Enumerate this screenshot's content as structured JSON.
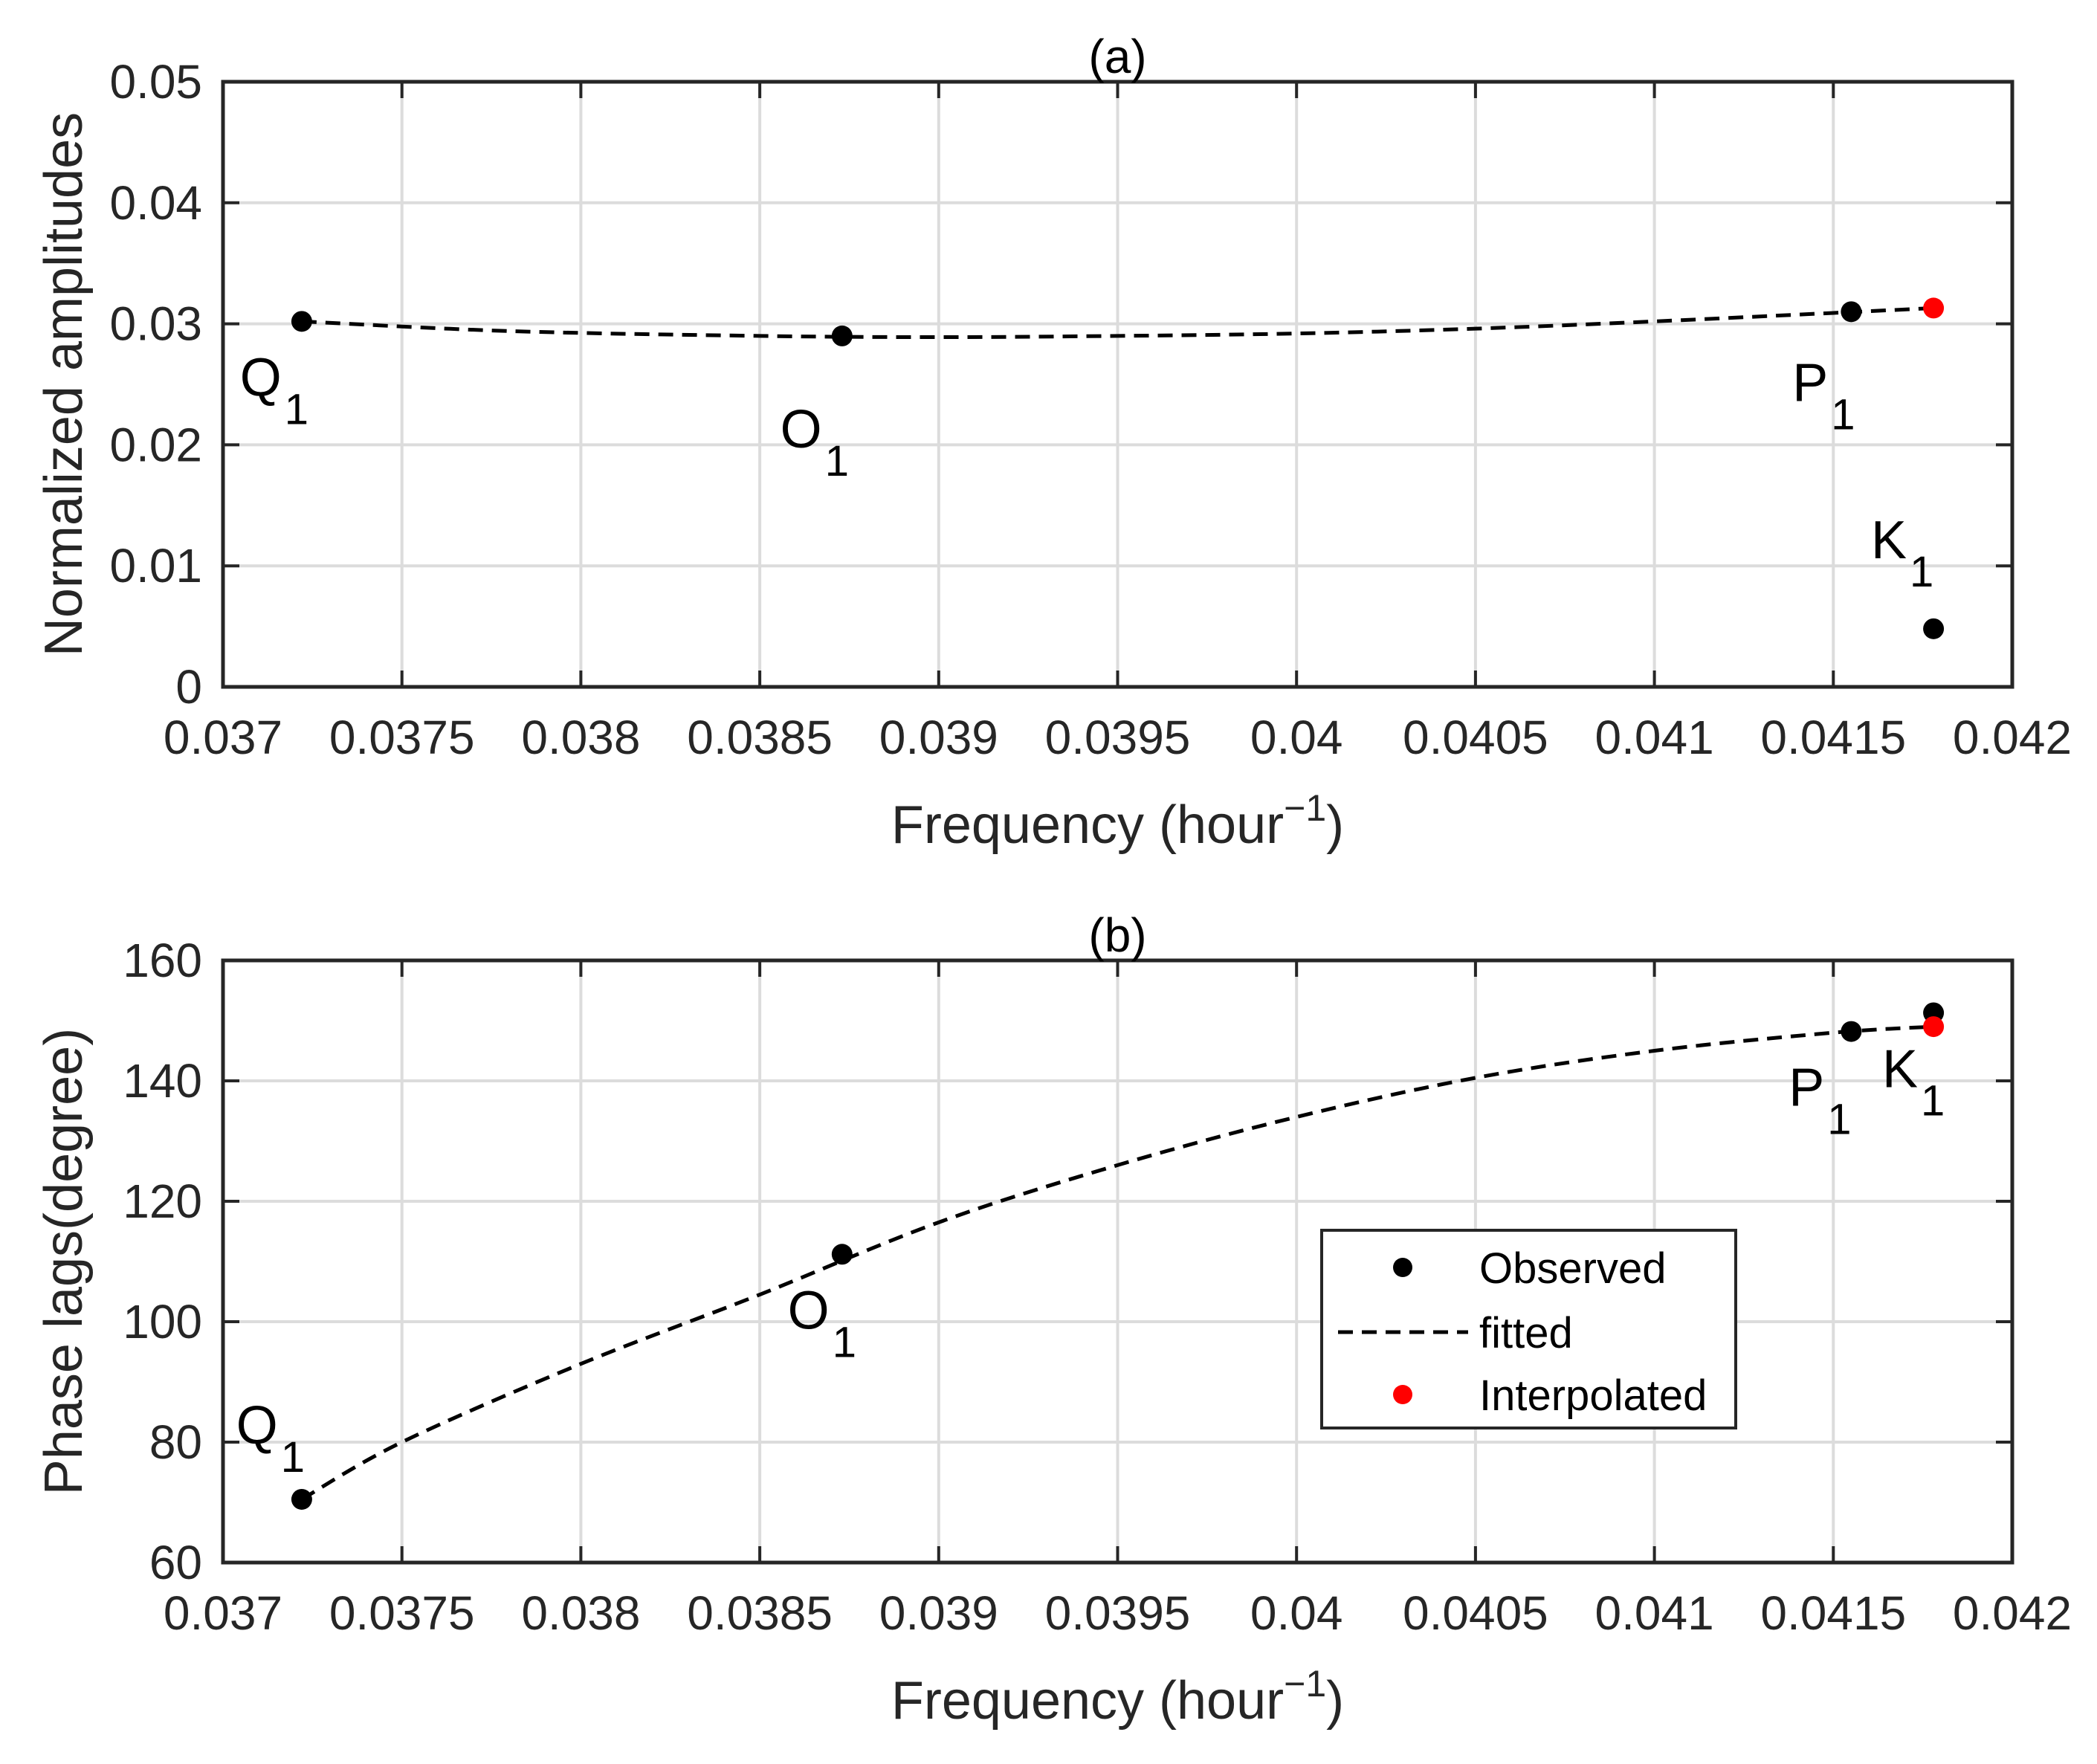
{
  "chart_data": [
    {
      "type": "scatter",
      "panel_title": "(a)",
      "xlabel": "Frequency (hour",
      "xlabel_sup": "−1",
      "xlabel_end": ")",
      "ylabel": "Normalized amplitudes",
      "xlim": [
        0.037,
        0.042
      ],
      "ylim": [
        0,
        0.05
      ],
      "xticks": [
        0.037,
        0.0375,
        0.038,
        0.0385,
        0.039,
        0.0395,
        0.04,
        0.0405,
        0.041,
        0.0415,
        0.042
      ],
      "xtick_labels": [
        "0.037",
        "0.0375",
        "0.038",
        "0.0385",
        "0.039",
        "0.0395",
        "0.04",
        "0.0405",
        "0.041",
        "0.0415",
        "0.042"
      ],
      "yticks": [
        0,
        0.01,
        0.02,
        0.03,
        0.04,
        0.05
      ],
      "ytick_labels": [
        "0",
        "0.01",
        "0.02",
        "0.03",
        "0.04",
        "0.05"
      ],
      "grid": true,
      "observed": [
        {
          "name": "Q",
          "sub": "1",
          "x": 0.03722,
          "y": 0.0302
        },
        {
          "name": "O",
          "sub": "1",
          "x": 0.03873,
          "y": 0.029
        },
        {
          "name": "P",
          "sub": "1",
          "x": 0.04155,
          "y": 0.031
        },
        {
          "name": "K",
          "sub": "1",
          "x": 0.04178,
          "y": 0.0048
        }
      ],
      "interpolated": [
        {
          "x": 0.04178,
          "y": 0.0313
        }
      ],
      "fitted": {
        "x": [
          0.03722,
          0.0378,
          0.0385,
          0.039,
          0.0395,
          0.04,
          0.0405,
          0.041,
          0.0415,
          0.04178
        ],
        "y": [
          0.0302,
          0.0294,
          0.029,
          0.0289,
          0.029,
          0.0292,
          0.0296,
          0.0302,
          0.0309,
          0.0313
        ]
      }
    },
    {
      "type": "scatter",
      "panel_title": "(b)",
      "xlabel": "Frequency (hour",
      "xlabel_sup": "−1",
      "xlabel_end": ")",
      "ylabel": "Phase lags(degree)",
      "xlim": [
        0.037,
        0.042
      ],
      "ylim": [
        60,
        160
      ],
      "xticks": [
        0.037,
        0.0375,
        0.038,
        0.0385,
        0.039,
        0.0395,
        0.04,
        0.0405,
        0.041,
        0.0415,
        0.042
      ],
      "xtick_labels": [
        "0.037",
        "0.0375",
        "0.038",
        "0.0385",
        "0.039",
        "0.0395",
        "0.04",
        "0.0405",
        "0.041",
        "0.0415",
        "0.042"
      ],
      "yticks": [
        60,
        80,
        100,
        120,
        140,
        160
      ],
      "ytick_labels": [
        "60",
        "80",
        "100",
        "120",
        "140",
        "160"
      ],
      "grid": true,
      "observed": [
        {
          "name": "Q",
          "sub": "1",
          "x": 0.03722,
          "y": 70.5
        },
        {
          "name": "O",
          "sub": "1",
          "x": 0.03873,
          "y": 111.2
        },
        {
          "name": "P",
          "sub": "1",
          "x": 0.04155,
          "y": 148.2
        },
        {
          "name": "K",
          "sub": "1",
          "x": 0.04178,
          "y": 151.3
        }
      ],
      "interpolated": [
        {
          "x": 0.04178,
          "y": 149
        }
      ],
      "fitted": {
        "x": [
          0.03722,
          0.0375,
          0.038,
          0.0385,
          0.039,
          0.0395,
          0.04,
          0.0405,
          0.041,
          0.0415,
          0.04178
        ],
        "y": [
          70.5,
          80,
          93,
          104.5,
          116.5,
          126,
          134,
          140.5,
          145,
          148,
          149
        ]
      }
    }
  ],
  "legend": {
    "placement": "center-right (panel b)",
    "entries": [
      "Observed",
      "fitted",
      "Interpolated"
    ]
  },
  "colors": {
    "observed": "#000000",
    "interpolated": "#ff0000",
    "fitted": "#000000",
    "grid": "#dcdcdc",
    "axis": "#262626"
  }
}
